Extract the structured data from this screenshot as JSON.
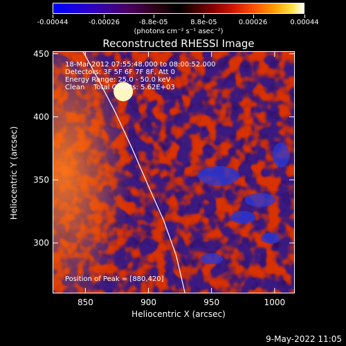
{
  "colorbar": {
    "tick_labels": [
      "-0.00044",
      "-0.00026",
      "-8.8e-05",
      "8.8e-05",
      "0.00026",
      "0.00044"
    ],
    "units": "(photons cm⁻² s⁻¹ asec⁻²)",
    "range": [
      -0.00044,
      0.00044
    ]
  },
  "chart_data": {
    "type": "heatmap",
    "title": "Reconstructed RHESSI Image",
    "xlabel": "Heliocentric X (arcsec)",
    "ylabel": "Heliocentric Y (arcsec)",
    "xlim": [
      824,
      1016
    ],
    "ylim": [
      260,
      452
    ],
    "x_ticks": [
      850,
      900,
      950,
      1000
    ],
    "y_ticks": [
      300,
      350,
      400,
      450
    ],
    "x_tick_labels": [
      "850",
      "900",
      "950",
      "1000"
    ],
    "y_tick_labels": [
      "300",
      "350",
      "400",
      "450"
    ],
    "peak": [
      880,
      420
    ],
    "limb_curve": [
      [
        848,
        452
      ],
      [
        860,
        430
      ],
      [
        873,
        405
      ],
      [
        887,
        375
      ],
      [
        900,
        345
      ],
      [
        912,
        318
      ],
      [
        922,
        290
      ],
      [
        929,
        260
      ]
    ]
  },
  "info": {
    "time_range": "18-Mar-2012 07:55:48.000 to 08:00:52.000",
    "detectors": "Detectors: 3F 5F 6F 7F 8F, Att 0",
    "energy": "Energy Range: 25.0 - 50.0 keV",
    "clean": "Clean    Total Counts: 5.62E+03",
    "peak_text": "Position of Peak = [880,420]"
  },
  "footer": {
    "timestamp": "9-May-2022 11:05"
  }
}
